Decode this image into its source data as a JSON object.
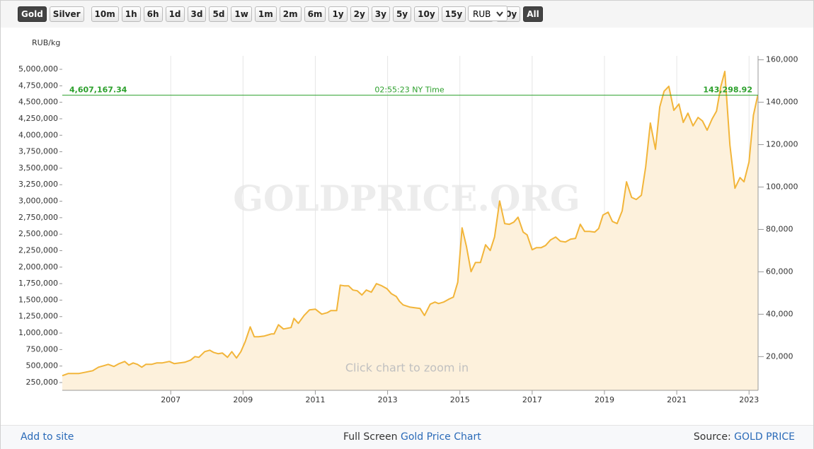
{
  "toolbar": {
    "buttons": [
      {
        "label": "Gold",
        "active": true
      },
      {
        "label": "Silver",
        "active": false
      },
      {
        "label": "10m",
        "active": false
      },
      {
        "label": "1h",
        "active": false
      },
      {
        "label": "6h",
        "active": false
      },
      {
        "label": "1d",
        "active": false
      },
      {
        "label": "3d",
        "active": false
      },
      {
        "label": "5d",
        "active": false
      },
      {
        "label": "1w",
        "active": false
      },
      {
        "label": "1m",
        "active": false
      },
      {
        "label": "2m",
        "active": false
      },
      {
        "label": "6m",
        "active": false
      },
      {
        "label": "1y",
        "active": false
      },
      {
        "label": "2y",
        "active": false
      },
      {
        "label": "3y",
        "active": false
      },
      {
        "label": "5y",
        "active": false
      },
      {
        "label": "10y",
        "active": false
      },
      {
        "label": "15y",
        "active": false
      },
      {
        "label": "20y",
        "active": false
      },
      {
        "label": "30y",
        "active": false
      },
      {
        "label": "All",
        "active": true
      }
    ],
    "currency": "RUB"
  },
  "chart_data": {
    "type": "area",
    "y_label": "RUB/kg",
    "watermark": "GOLDPRICE.ORG",
    "hint": "Click chart to zoom in",
    "color": "#f2b53a",
    "fill": "#fdf1dc",
    "grid": "x",
    "xlim": [
      2004,
      2023.25
    ],
    "xticks": [
      2007,
      2009,
      2011,
      2013,
      2015,
      2017,
      2019,
      2021,
      2023
    ],
    "ylim": [
      132000,
      5204000
    ],
    "yticks": [
      {
        "value": 250000,
        "label": "250,000"
      },
      {
        "value": 500000,
        "label": "500,000"
      },
      {
        "value": 750000,
        "label": "750,000"
      },
      {
        "value": 1000000,
        "label": "1,000,000"
      },
      {
        "value": 1250000,
        "label": "1,250,000"
      },
      {
        "value": 1500000,
        "label": "1,500,000"
      },
      {
        "value": 1750000,
        "label": "1,750,000"
      },
      {
        "value": 2000000,
        "label": "2,000,000"
      },
      {
        "value": 2250000,
        "label": "2,250,000"
      },
      {
        "value": 2500000,
        "label": "2,500,000"
      },
      {
        "value": 2750000,
        "label": "2,750,000"
      },
      {
        "value": 3000000,
        "label": "3,000,000"
      },
      {
        "value": 3250000,
        "label": "3,250,000"
      },
      {
        "value": 3500000,
        "label": "3,500,000"
      },
      {
        "value": 3750000,
        "label": "3,750,000"
      },
      {
        "value": 4000000,
        "label": "4,000,000"
      },
      {
        "value": 4250000,
        "label": "4,250,000"
      },
      {
        "value": 4500000,
        "label": "4,500,000"
      },
      {
        "value": 4750000,
        "label": "4,750,000"
      },
      {
        "value": 5000000,
        "label": "5,000,000"
      }
    ],
    "y2lim": [
      4106,
      161866
    ],
    "y2ticks": [
      {
        "value": 20000,
        "label": "20,000"
      },
      {
        "value": 40000,
        "label": "40,000"
      },
      {
        "value": 60000,
        "label": "60,000"
      },
      {
        "value": 80000,
        "label": "80,000"
      },
      {
        "value": 100000,
        "label": "100,000"
      },
      {
        "value": 120000,
        "label": "120,000"
      },
      {
        "value": 140000,
        "label": "140,000"
      },
      {
        "value": 160000,
        "label": "160,000"
      }
    ],
    "price_line": {
      "color": "#2ca02c",
      "left": {
        "value": 4607167.34,
        "label": "4,607,167.34"
      },
      "right": {
        "value": 143298.92,
        "label": "143,298.92"
      },
      "time": "02:55:23 NY Time"
    },
    "x": [
      2004.0,
      2004.16,
      2004.45,
      2004.65,
      2004.84,
      2005.0,
      2005.14,
      2005.27,
      2005.43,
      2005.57,
      2005.73,
      2005.84,
      2005.96,
      2006.08,
      2006.2,
      2006.31,
      2006.47,
      2006.61,
      2006.76,
      2006.96,
      2007.1,
      2007.24,
      2007.39,
      2007.55,
      2007.67,
      2007.78,
      2007.94,
      2008.08,
      2008.18,
      2008.31,
      2008.43,
      2008.57,
      2008.69,
      2008.82,
      2008.94,
      2009.06,
      2009.2,
      2009.31,
      2009.43,
      2009.59,
      2009.78,
      2009.86,
      2009.98,
      2010.12,
      2010.33,
      2010.41,
      2010.53,
      2010.69,
      2010.84,
      2011.0,
      2011.18,
      2011.33,
      2011.43,
      2011.59,
      2011.69,
      2011.8,
      2011.92,
      2012.04,
      2012.16,
      2012.29,
      2012.41,
      2012.55,
      2012.69,
      2012.84,
      2012.98,
      2013.1,
      2013.24,
      2013.33,
      2013.43,
      2013.61,
      2013.75,
      2013.9,
      2014.02,
      2014.18,
      2014.31,
      2014.41,
      2014.55,
      2014.69,
      2014.82,
      2014.94,
      2015.06,
      2015.18,
      2015.31,
      2015.43,
      2015.57,
      2015.71,
      2015.84,
      2015.96,
      2016.1,
      2016.24,
      2016.37,
      2016.49,
      2016.61,
      2016.75,
      2016.86,
      2017.0,
      2017.12,
      2017.25,
      2017.37,
      2017.51,
      2017.65,
      2017.78,
      2017.92,
      2018.06,
      2018.2,
      2018.33,
      2018.45,
      2018.59,
      2018.73,
      2018.84,
      2018.96,
      2019.1,
      2019.22,
      2019.35,
      2019.49,
      2019.61,
      2019.75,
      2019.88,
      2020.02,
      2020.14,
      2020.27,
      2020.41,
      2020.53,
      2020.65,
      2020.78,
      2020.92,
      2021.06,
      2021.18,
      2021.31,
      2021.45,
      2021.59,
      2021.71,
      2021.84,
      2021.98,
      2022.1,
      2022.22,
      2022.33,
      2022.47,
      2022.61,
      2022.75,
      2022.86,
      2023.0,
      2023.12,
      2023.24
    ],
    "values": [
      354000,
      386000,
      386000,
      408000,
      429000,
      483000,
      504000,
      526000,
      493000,
      536000,
      569000,
      515000,
      547000,
      526000,
      483000,
      526000,
      526000,
      547000,
      547000,
      569000,
      536000,
      547000,
      558000,
      590000,
      644000,
      633000,
      719000,
      740000,
      708000,
      687000,
      697000,
      633000,
      719000,
      622000,
      719000,
      869000,
      1094000,
      944000,
      944000,
      955000,
      987000,
      987000,
      1126000,
      1062000,
      1084000,
      1223000,
      1148000,
      1266000,
      1352000,
      1363000,
      1287000,
      1309000,
      1341000,
      1341000,
      1727000,
      1717000,
      1717000,
      1652000,
      1642000,
      1577000,
      1652000,
      1620000,
      1749000,
      1717000,
      1674000,
      1599000,
      1556000,
      1481000,
      1427000,
      1395000,
      1384000,
      1373000,
      1266000,
      1438000,
      1470000,
      1448000,
      1470000,
      1513000,
      1545000,
      1770000,
      2596000,
      2318000,
      1931000,
      2071000,
      2071000,
      2339000,
      2253000,
      2457000,
      3004000,
      2661000,
      2650000,
      2682000,
      2757000,
      2532000,
      2489000,
      2264000,
      2296000,
      2296000,
      2328000,
      2414000,
      2457000,
      2393000,
      2382000,
      2425000,
      2436000,
      2650000,
      2543000,
      2543000,
      2532000,
      2586000,
      2790000,
      2833000,
      2693000,
      2661000,
      2854000,
      3294000,
      3058000,
      3026000,
      3090000,
      3519000,
      4185000,
      3788000,
      4431000,
      4667000,
      4742000,
      4378000,
      4474000,
      4195000,
      4335000,
      4142000,
      4270000,
      4217000,
      4077000,
      4249000,
      4367000,
      4742000,
      4968000,
      3852000,
      3197000,
      3358000,
      3294000,
      3594000,
      4303000,
      4603000
    ]
  },
  "footer": {
    "add": "Add to site",
    "fullscreen": "Full Screen",
    "chart_link": "Gold Price Chart",
    "source": "Source:",
    "source_link": "GOLD PRICE"
  }
}
